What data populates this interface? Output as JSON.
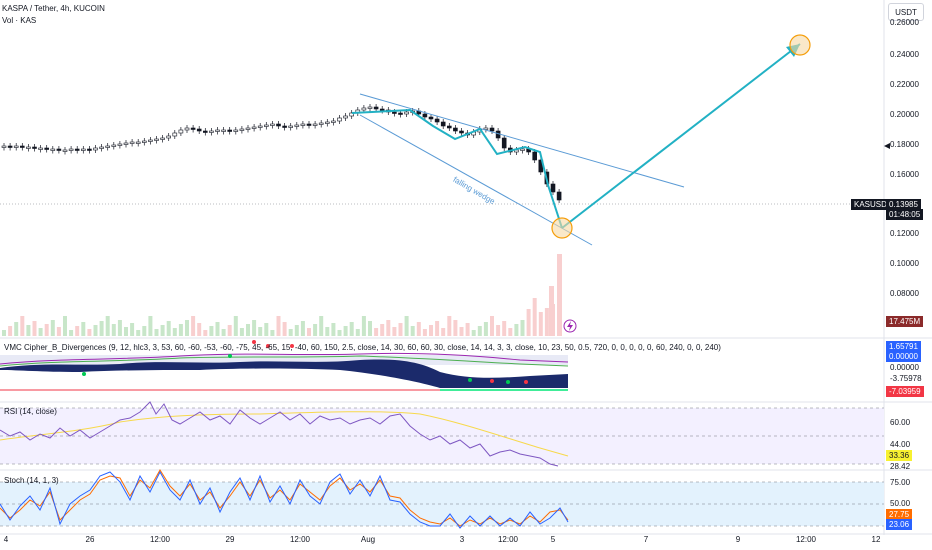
{
  "header": {
    "symbol_line": "KASPA / Tether, 4h, KUCOIN",
    "volume_label": "Vol · KAS",
    "currency_button": "USDT"
  },
  "price_axis": {
    "labels": [
      "0.26000",
      "0.24000",
      "0.22000",
      "0.20000",
      "0.18000",
      "0.16000",
      "0.12000",
      "0.10000",
      "0.08000"
    ],
    "symbol_tag": "KASUSDT",
    "last_price": "0.13985",
    "countdown": "01:48:05",
    "volume_value": "17.475M"
  },
  "annotations": {
    "pattern_label": "falling wedge"
  },
  "vmc_pane": {
    "title": "VMC Cipher_B_Divergences (9, 12, hlc3, 3, 53, 60, -60, -53, -60, -75, 45, -65, 15, -40, 60, 150, 2.5, close, 14, 30, 60, 60, 30, close, 14, 14, 3, 3, close, 10, 23, 50, 0.5, 720, 0, 0, 0, 0, 0, 60, 240, 0, 0, 240)",
    "values": [
      "1.65791",
      "0.00000",
      "0.00000",
      "-3.75978",
      "-7.03959"
    ],
    "value_colors": [
      "#2962ff",
      "#2962ff",
      "#131722",
      "#131722",
      "#f23645"
    ]
  },
  "rsi_pane": {
    "title": "RSI (14, close)",
    "axis_labels": [
      "60.00",
      "44.00",
      "28.42"
    ],
    "value_tag": "33.36",
    "value_tag_color": "#f7f130"
  },
  "stoch_pane": {
    "title": "Stoch (14, 1, 3)",
    "axis_labels": [
      "75.00",
      "50.00"
    ],
    "k_value": "27.75",
    "d_value": "23.06",
    "k_color": "#ff6d00",
    "d_color": "#2962ff"
  },
  "time_axis": {
    "labels": [
      "4",
      "26",
      "12:00",
      "29",
      "12:00",
      "Aug",
      "3",
      "12:00",
      "5",
      "7",
      "9",
      "12:00",
      "12"
    ]
  }
}
